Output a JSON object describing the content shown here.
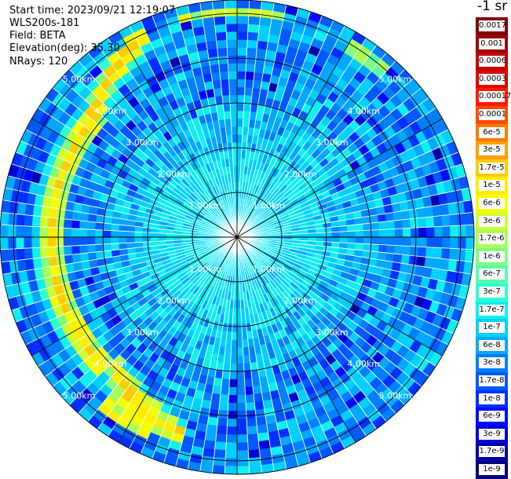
{
  "info": {
    "start_time": "Start time: 2023/09/21 12:19:07",
    "device": "WLS200s-181",
    "field": "Field: BETA",
    "elevation": "Elevation(deg): 35.30",
    "nrays": "NRays: 120"
  },
  "legend": {
    "unit": "-1 sr",
    "items": [
      {
        "label": "0.0017",
        "color": "#7f0000"
      },
      {
        "label": "0.001",
        "color": "#a00000"
      },
      {
        "label": "0.0006",
        "color": "#c80000"
      },
      {
        "label": "0.0003",
        "color": "#e00000"
      },
      {
        "label": "0.00017",
        "color": "#ff1a00"
      },
      {
        "label": "0.0001",
        "color": "#ff4a00"
      },
      {
        "label": "6e-5",
        "color": "#ff7800"
      },
      {
        "label": "3e-5",
        "color": "#ffa000"
      },
      {
        "label": "1.7e-5",
        "color": "#ffcc00"
      },
      {
        "label": "1e-5",
        "color": "#ffee00"
      },
      {
        "label": "6e-6",
        "color": "#f4ff00"
      },
      {
        "label": "3e-6",
        "color": "#d0ff30"
      },
      {
        "label": "1.7e-6",
        "color": "#a8ff58"
      },
      {
        "label": "1e-6",
        "color": "#80ff80"
      },
      {
        "label": "6e-7",
        "color": "#58ffa8"
      },
      {
        "label": "3e-7",
        "color": "#30ffd0"
      },
      {
        "label": "1.7e-7",
        "color": "#10f0f0"
      },
      {
        "label": "1e-7",
        "color": "#00d0ff"
      },
      {
        "label": "6e-8",
        "color": "#00a8ff"
      },
      {
        "label": "3e-8",
        "color": "#0080ff"
      },
      {
        "label": "1.7e-8",
        "color": "#0058ff"
      },
      {
        "label": "1e-8",
        "color": "#0030ff"
      },
      {
        "label": "6e-9",
        "color": "#0008ff"
      },
      {
        "label": "3e-9",
        "color": "#0000d8"
      },
      {
        "label": "1.7e-9",
        "color": "#0000a8"
      },
      {
        "label": "1e-9",
        "color": "#00007a"
      }
    ]
  },
  "chart_data": {
    "type": "heatmap",
    "projection": "polar (PPI scan)",
    "title": "",
    "rays": 120,
    "range_km": [
      0,
      5.3
    ],
    "range_rings_km": [
      1,
      2,
      3,
      4,
      5
    ],
    "ring_labels": [
      "1.00km",
      "2.00km",
      "3.00km",
      "4.00km",
      "5.00km"
    ],
    "spoke_count": 12,
    "background_value": "1e-7 to 1e-8 sr^-1 (cyan/blue)",
    "near_field_value": "~1.7e-7 sr^-1 within ~1 km",
    "feature": "Arc of elevated backscatter (1.7e-5 to 3e-5 sr^-1) near 4.2 km range on the western side, from NNW to SSW azimuths"
  }
}
